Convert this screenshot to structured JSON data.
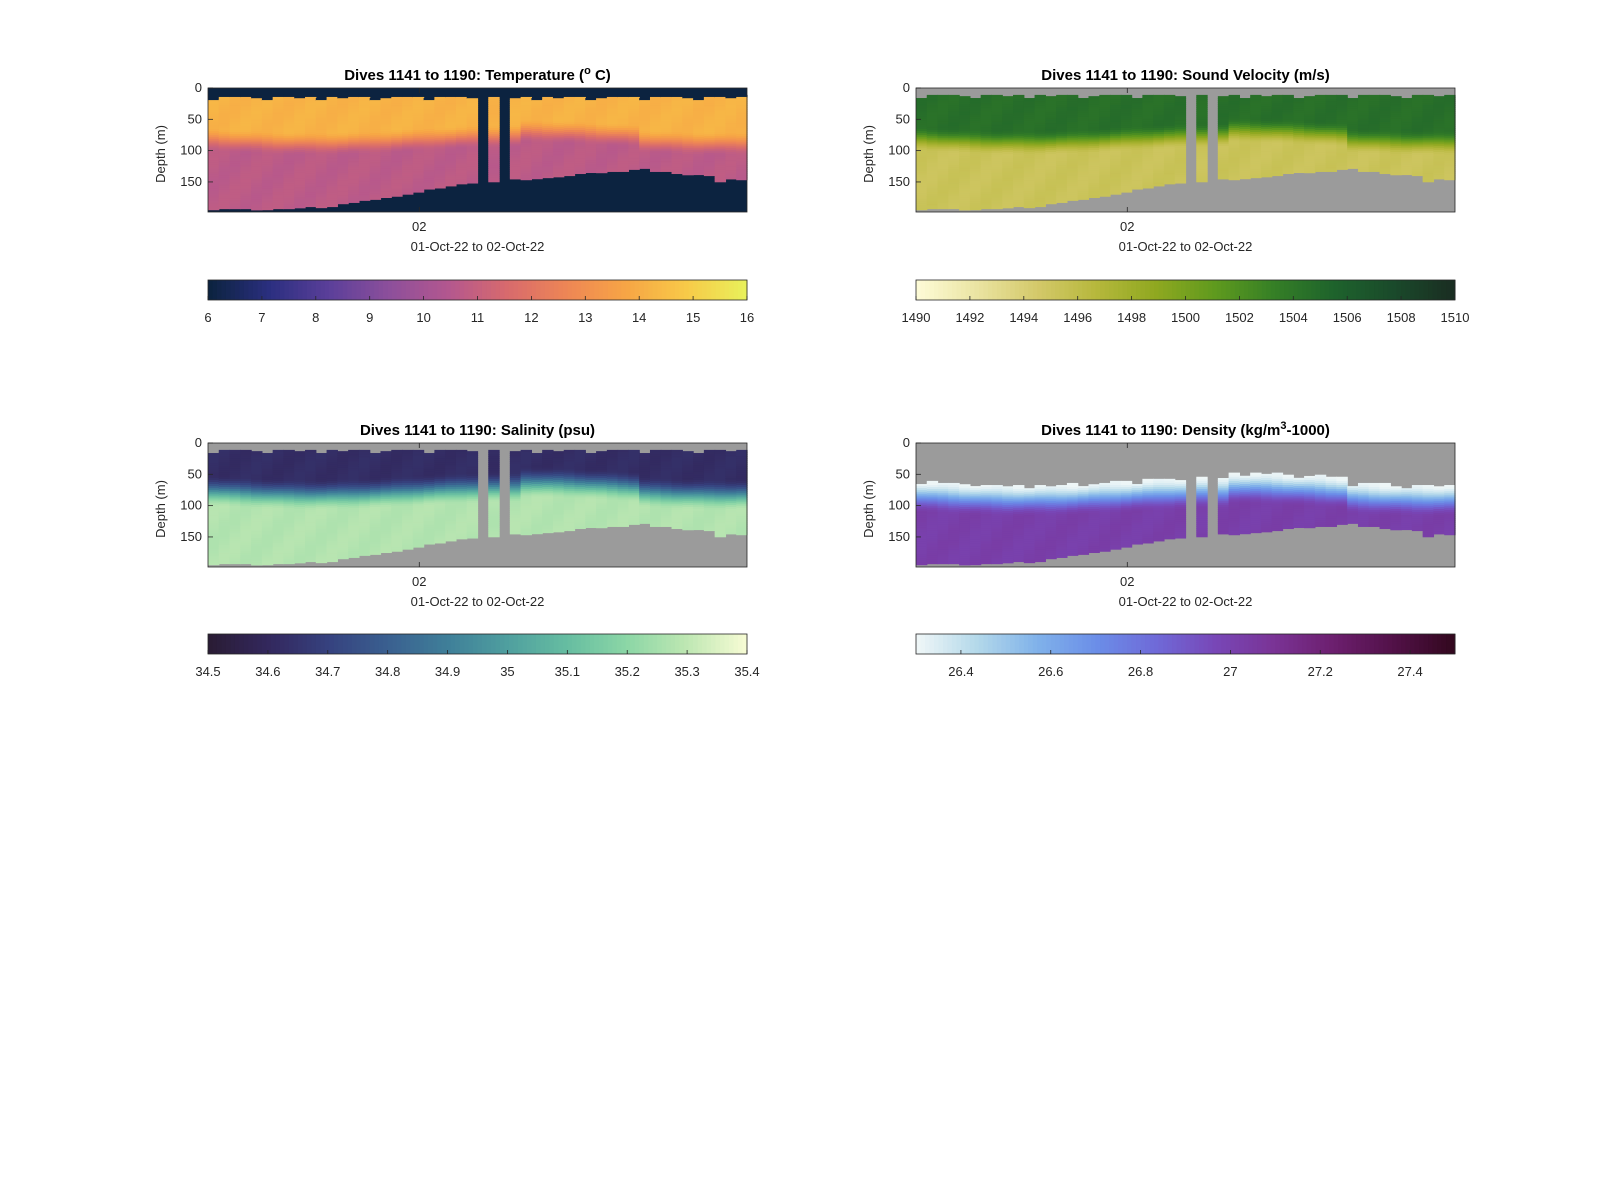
{
  "figure": {
    "background": "#ffffff",
    "nodata_color": "#9b9b9b"
  },
  "chart_data": [
    {
      "type": "heatmap",
      "id": "temperature",
      "title": "Dives 1141 to 1190: Temperature (",
      "title_sup": "o",
      "title_tail": " C)",
      "ylabel": "Depth (m)",
      "xlabel": "01-Oct-22 to 02-Oct-22",
      "x_ticks": [
        {
          "label": "02",
          "dive_index": 19.6
        }
      ],
      "y_ticks": [
        0,
        50,
        100,
        150
      ],
      "ylim": [
        0,
        198
      ],
      "dives": 50,
      "colorbar": {
        "ticks": [
          6,
          7,
          8,
          9,
          10,
          11,
          12,
          13,
          14,
          15,
          16
        ],
        "range": [
          6,
          16
        ],
        "colors": [
          "#0c2340",
          "#2b2f80",
          "#5b3f9a",
          "#8c4f9b",
          "#b3578f",
          "#d86a6d",
          "#ee8655",
          "#f7a545",
          "#f8c948",
          "#e9f05a"
        ]
      },
      "nodata_color": "#0c2340",
      "surface_value": 6.0,
      "mixed_layer_value": 14.2,
      "deep_value": 10.7,
      "thermocline_depth_m": [
        62,
        100
      ]
    },
    {
      "type": "heatmap",
      "id": "sound_velocity",
      "title": "Dives 1141 to 1190: Sound Velocity (m/s)",
      "ylabel": "Depth (m)",
      "xlabel": "01-Oct-22 to 02-Oct-22",
      "x_ticks": [
        {
          "label": "02",
          "dive_index": 19.6
        }
      ],
      "y_ticks": [
        0,
        50,
        100,
        150
      ],
      "ylim": [
        0,
        198
      ],
      "dives": 50,
      "colorbar": {
        "ticks": [
          1490,
          1492,
          1494,
          1496,
          1498,
          1500,
          1502,
          1504,
          1506,
          1508,
          1510
        ],
        "range": [
          1490,
          1510
        ],
        "colors": [
          "#fdfbd6",
          "#eae4a1",
          "#d4c96a",
          "#b6b83c",
          "#8fa820",
          "#5f9a1e",
          "#357f26",
          "#1e632c",
          "#1a4a2b",
          "#1a2e22"
        ]
      },
      "nodata_color": "#9b9b9b",
      "surface_value": 1504.6,
      "deep_value": 1495.2,
      "thermocline_depth_m": [
        60,
        100
      ]
    },
    {
      "type": "heatmap",
      "id": "salinity",
      "title": "Dives 1141 to 1190: Salinity (psu)",
      "ylabel": "Depth (m)",
      "xlabel": "01-Oct-22 to 02-Oct-22",
      "x_ticks": [
        {
          "label": "02",
          "dive_index": 19.6
        }
      ],
      "y_ticks": [
        0,
        50,
        100,
        150
      ],
      "ylim": [
        0,
        198
      ],
      "dives": 50,
      "colorbar": {
        "ticks": [
          34.5,
          34.6,
          34.7,
          34.8,
          34.9,
          35,
          35.1,
          35.2,
          35.3,
          35.4
        ],
        "range": [
          34.5,
          35.4
        ],
        "colors": [
          "#2a1c35",
          "#33285e",
          "#36427f",
          "#3a6090",
          "#3f7f99",
          "#4f9f9f",
          "#66bda1",
          "#8bd6a6",
          "#bde7b2",
          "#f5fbd3"
        ]
      },
      "nodata_color": "#9b9b9b",
      "surface_value": 34.62,
      "deep_value": 35.28,
      "thermocline_depth_m": [
        50,
        100
      ]
    },
    {
      "type": "heatmap",
      "id": "density",
      "title": "Dives 1141 to 1190: Density (kg/m",
      "title_sup": "3",
      "title_tail": "-1000)",
      "ylabel": "Depth (m)",
      "xlabel": "01-Oct-22 to 02-Oct-22",
      "x_ticks": [
        {
          "label": "02",
          "dive_index": 19.6
        }
      ],
      "y_ticks": [
        0,
        50,
        100,
        150
      ],
      "ylim": [
        0,
        198
      ],
      "dives": 50,
      "colorbar": {
        "ticks": [
          26.4,
          26.6,
          26.8,
          27,
          27.2,
          27.4
        ],
        "range": [
          26.3,
          27.5
        ],
        "colors": [
          "#eef6f7",
          "#b3d8ea",
          "#80b2ea",
          "#6b8ee8",
          "#6f6ad8",
          "#7847b7",
          "#7a3395",
          "#6c1f6e",
          "#521148",
          "#33081f"
        ]
      },
      "nodata_color": "#9b9b9b",
      "surface_value": 26.3,
      "deep_value": 27.02,
      "thermocline_depth_m": [
        60,
        110
      ]
    }
  ]
}
